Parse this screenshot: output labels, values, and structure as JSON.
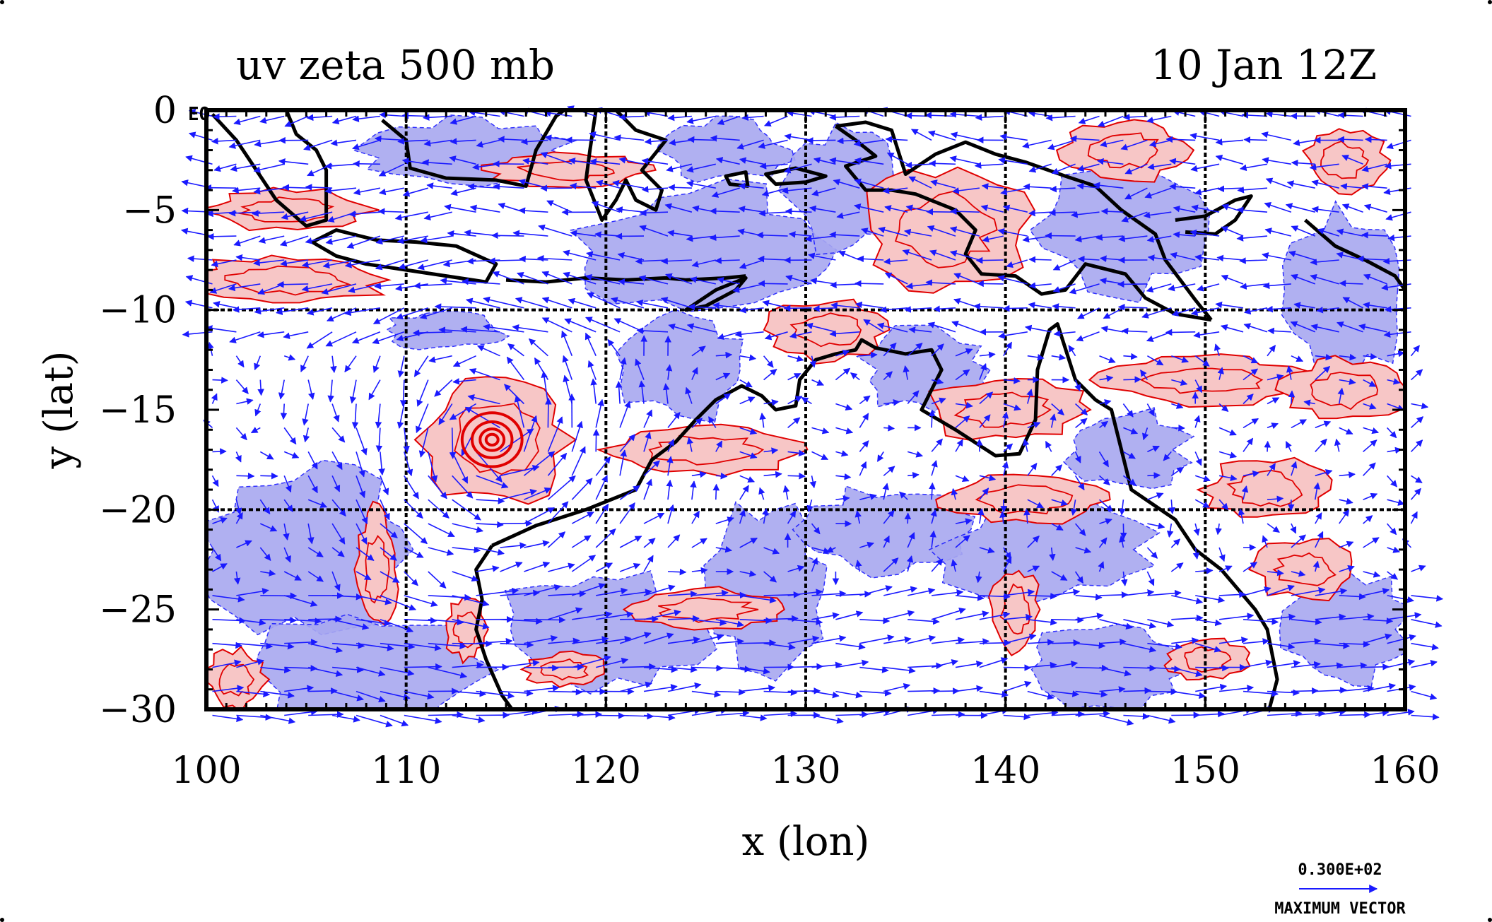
{
  "titles": {
    "left": "uv zeta 500 mb",
    "right": "10 Jan 12Z"
  },
  "axes": {
    "xlabel": "x (lon)",
    "ylabel": "y (lat)",
    "x_ticks": [
      "100",
      "110",
      "120",
      "130",
      "140",
      "150",
      "160"
    ],
    "y_ticks": [
      "0",
      "−5",
      "−10",
      "−15",
      "−20",
      "−25",
      "−30"
    ],
    "equator_label": "EQ",
    "xlim": [
      100,
      160
    ],
    "ylim": [
      -30,
      0
    ]
  },
  "legend": {
    "value": "0.300E+02",
    "caption": "MAXIMUM VECTOR"
  },
  "colors": {
    "vector": "#1a1aff",
    "positive_fill": "#f7c6c6",
    "positive_contour": "#e00000",
    "negative_fill": "#a8a8f0",
    "coastline": "#000000",
    "grid": "#000000"
  },
  "map_data": {
    "projection": "lon-lat",
    "gridlines_lon": [
      110,
      120,
      130,
      140,
      150
    ],
    "gridlines_lat": [
      -10,
      -20
    ],
    "cyclone_center": {
      "lon": 114.3,
      "lat": -16.5
    },
    "positive_vorticity_regions": [
      {
        "lon": 114.5,
        "lat": -16.5,
        "rlon": 3.5,
        "rlat": 3.2
      },
      {
        "lon": 104,
        "lat": -5,
        "rlon": 4,
        "rlat": 1
      },
      {
        "lon": 104,
        "lat": -8.5,
        "rlon": 5,
        "rlat": 1.2
      },
      {
        "lon": 118,
        "lat": -3,
        "rlon": 4,
        "rlat": 0.8
      },
      {
        "lon": 137,
        "lat": -6,
        "rlon": 4,
        "rlat": 3
      },
      {
        "lon": 146,
        "lat": -2,
        "rlon": 3,
        "rlat": 1.5
      },
      {
        "lon": 157,
        "lat": -2.5,
        "rlon": 2,
        "rlat": 1.5
      },
      {
        "lon": 125,
        "lat": -17,
        "rlon": 5,
        "rlat": 1.2
      },
      {
        "lon": 131,
        "lat": -11,
        "rlon": 3,
        "rlat": 1.5
      },
      {
        "lon": 140,
        "lat": -15,
        "rlon": 4,
        "rlat": 1.5
      },
      {
        "lon": 150,
        "lat": -13.5,
        "rlon": 5,
        "rlat": 1.2
      },
      {
        "lon": 153,
        "lat": -19,
        "rlon": 3,
        "rlat": 1.5
      },
      {
        "lon": 157,
        "lat": -14,
        "rlon": 3,
        "rlat": 1.5
      },
      {
        "lon": 141,
        "lat": -19.5,
        "rlon": 4,
        "rlat": 1.2
      },
      {
        "lon": 155,
        "lat": -23,
        "rlon": 2.5,
        "rlat": 1.5
      },
      {
        "lon": 150,
        "lat": -27.5,
        "rlon": 2,
        "rlat": 1
      },
      {
        "lon": 140.5,
        "lat": -25,
        "rlon": 1.2,
        "rlat": 2
      },
      {
        "lon": 108.5,
        "lat": -23,
        "rlon": 1,
        "rlat": 3
      },
      {
        "lon": 113,
        "lat": -26,
        "rlon": 1,
        "rlat": 1.5
      },
      {
        "lon": 101.5,
        "lat": -28.5,
        "rlon": 1.5,
        "rlat": 1.5
      },
      {
        "lon": 118,
        "lat": -28,
        "rlon": 2,
        "rlat": 0.8
      },
      {
        "lon": 125,
        "lat": -25,
        "rlon": 4,
        "rlat": 1
      }
    ],
    "negative_vorticity_regions": [
      {
        "lon": 105,
        "lat": -22,
        "rlon": 5,
        "rlat": 4
      },
      {
        "lon": 108,
        "lat": -28,
        "rlon": 6,
        "rlat": 2.5
      },
      {
        "lon": 120,
        "lat": -26,
        "rlon": 5,
        "rlat": 3
      },
      {
        "lon": 128,
        "lat": -24,
        "rlon": 3,
        "rlat": 4
      },
      {
        "lon": 134,
        "lat": -21,
        "rlon": 4,
        "rlat": 2
      },
      {
        "lon": 142,
        "lat": -22,
        "rlon": 5,
        "rlat": 2.5
      },
      {
        "lon": 145,
        "lat": -28,
        "rlon": 4,
        "rlat": 2
      },
      {
        "lon": 157,
        "lat": -26,
        "rlon": 3,
        "rlat": 3
      },
      {
        "lon": 157,
        "lat": -9,
        "rlon": 3,
        "rlat": 4
      },
      {
        "lon": 125,
        "lat": -7,
        "rlon": 6,
        "rlat": 3
      },
      {
        "lon": 113,
        "lat": -2,
        "rlon": 5,
        "rlat": 1.5
      },
      {
        "lon": 126,
        "lat": -2,
        "rlon": 3,
        "rlat": 1.5
      },
      {
        "lon": 132,
        "lat": -4,
        "rlon": 3,
        "rlat": 3
      },
      {
        "lon": 146,
        "lat": -6,
        "rlon": 4,
        "rlat": 3
      },
      {
        "lon": 124,
        "lat": -13,
        "rlon": 3,
        "rlat": 2.5
      },
      {
        "lon": 136,
        "lat": -13,
        "rlon": 3,
        "rlat": 2
      },
      {
        "lon": 146,
        "lat": -17,
        "rlon": 3,
        "rlat": 2
      },
      {
        "lon": 112,
        "lat": -11,
        "rlon": 3,
        "rlat": 1
      }
    ],
    "coastlines": [
      {
        "name": "Australia",
        "closed": false,
        "points": [
          [
            114.3,
            -21.8
          ],
          [
            113.5,
            -23
          ],
          [
            113.8,
            -24.5
          ],
          [
            113.5,
            -26
          ],
          [
            114,
            -27.5
          ],
          [
            114.8,
            -29.3
          ],
          [
            115.3,
            -30
          ]
        ]
      },
      {
        "name": "Australia north",
        "closed": false,
        "points": [
          [
            114.3,
            -21.8
          ],
          [
            116.5,
            -20.8
          ],
          [
            119,
            -20
          ],
          [
            121.5,
            -19
          ],
          [
            122.3,
            -17.5
          ],
          [
            123.5,
            -16.6
          ],
          [
            124.5,
            -15.5
          ],
          [
            125.5,
            -14.5
          ],
          [
            126.8,
            -13.8
          ],
          [
            127.8,
            -14.3
          ],
          [
            128.5,
            -15
          ],
          [
            129.5,
            -14.8
          ],
          [
            129.7,
            -13.5
          ],
          [
            130.5,
            -12.5
          ],
          [
            131.5,
            -12.2
          ],
          [
            132.5,
            -12
          ],
          [
            132.8,
            -11.5
          ],
          [
            133.5,
            -11.9
          ],
          [
            135,
            -12.2
          ],
          [
            136.3,
            -12
          ],
          [
            136.8,
            -13
          ],
          [
            135.8,
            -15
          ],
          [
            137.5,
            -16
          ],
          [
            139.5,
            -17.3
          ],
          [
            140.7,
            -17.2
          ],
          [
            141.5,
            -15.5
          ],
          [
            141.6,
            -13
          ],
          [
            142.2,
            -11
          ],
          [
            142.6,
            -10.7
          ],
          [
            143.5,
            -13.5
          ],
          [
            144.5,
            -14.5
          ],
          [
            145.3,
            -15
          ],
          [
            145.8,
            -17
          ],
          [
            146.3,
            -19
          ],
          [
            148.5,
            -20.5
          ],
          [
            149.5,
            -22
          ],
          [
            150.8,
            -23
          ],
          [
            152.5,
            -25
          ],
          [
            153.1,
            -26
          ],
          [
            153.6,
            -28.5
          ],
          [
            153.2,
            -30
          ]
        ]
      },
      {
        "name": "Sumatra",
        "closed": false,
        "points": [
          [
            100.3,
            -0.2
          ],
          [
            101.5,
            -1.5
          ],
          [
            102.5,
            -3
          ],
          [
            103.5,
            -4.5
          ],
          [
            105,
            -5.8
          ],
          [
            106,
            -5.5
          ],
          [
            106,
            -3
          ],
          [
            105.5,
            -2
          ],
          [
            104.5,
            -1.2
          ],
          [
            104,
            0
          ]
        ]
      },
      {
        "name": "Java",
        "closed": true,
        "points": [
          [
            105.3,
            -6.6
          ],
          [
            106.5,
            -6
          ],
          [
            108.5,
            -6.5
          ],
          [
            110.5,
            -6.6
          ],
          [
            112.5,
            -6.8
          ],
          [
            114.5,
            -7.7
          ],
          [
            114,
            -8.6
          ],
          [
            112,
            -8.3
          ],
          [
            110,
            -8
          ],
          [
            108,
            -7.7
          ],
          [
            106.5,
            -7.3
          ]
        ]
      },
      {
        "name": "Lesser Sunda",
        "closed": false,
        "points": [
          [
            115,
            -8.5
          ],
          [
            117,
            -8.6
          ],
          [
            119,
            -8.4
          ],
          [
            121,
            -8.5
          ],
          [
            123,
            -8.4
          ],
          [
            124,
            -8.5
          ],
          [
            126,
            -8.4
          ],
          [
            127,
            -8.3
          ]
        ]
      },
      {
        "name": "Timor",
        "closed": true,
        "points": [
          [
            124,
            -10
          ],
          [
            125.5,
            -9
          ],
          [
            127,
            -8.4
          ],
          [
            126.5,
            -9
          ],
          [
            125,
            -9.8
          ]
        ]
      },
      {
        "name": "Borneo",
        "closed": false,
        "points": [
          [
            108.8,
            -0.5
          ],
          [
            110,
            -1.5
          ],
          [
            110.2,
            -2.9
          ],
          [
            112,
            -3.4
          ],
          [
            114.5,
            -3.5
          ],
          [
            116,
            -3.8
          ],
          [
            116.5,
            -2
          ],
          [
            117.5,
            -0.3
          ],
          [
            117.9,
            0
          ]
        ]
      },
      {
        "name": "Sulawesi",
        "closed": false,
        "points": [
          [
            119.5,
            0
          ],
          [
            119.2,
            -2
          ],
          [
            119,
            -3.5
          ],
          [
            119.8,
            -5.5
          ],
          [
            120.5,
            -4.5
          ],
          [
            121,
            -3.5
          ],
          [
            121.5,
            -4.5
          ],
          [
            122.5,
            -5
          ],
          [
            122.8,
            -4
          ],
          [
            121.8,
            -3
          ],
          [
            123,
            -1.5
          ],
          [
            121.5,
            -1
          ],
          [
            120.5,
            0
          ]
        ]
      },
      {
        "name": "Seram",
        "closed": true,
        "points": [
          [
            128,
            -3.2
          ],
          [
            129.5,
            -2.9
          ],
          [
            131,
            -3.3
          ],
          [
            130,
            -3.6
          ],
          [
            128.5,
            -3.7
          ]
        ]
      },
      {
        "name": "Buru",
        "closed": true,
        "points": [
          [
            126,
            -3.3
          ],
          [
            127,
            -3.1
          ],
          [
            127.1,
            -3.8
          ],
          [
            126.2,
            -3.7
          ]
        ]
      },
      {
        "name": "New Guinea north",
        "closed": false,
        "points": [
          [
            131.5,
            -0.8
          ],
          [
            133,
            -0.6
          ],
          [
            134.3,
            -1
          ],
          [
            135,
            -3.2
          ],
          [
            136.5,
            -2.2
          ],
          [
            138,
            -1.6
          ],
          [
            139.5,
            -2.2
          ],
          [
            141,
            -2.6
          ],
          [
            143,
            -3.3
          ],
          [
            144.5,
            -3.8
          ],
          [
            145.8,
            -5
          ],
          [
            147.5,
            -6.2
          ],
          [
            148,
            -7.5
          ],
          [
            149.5,
            -9.5
          ],
          [
            150.3,
            -10.5
          ]
        ]
      },
      {
        "name": "New Guinea south",
        "closed": false,
        "points": [
          [
            150.3,
            -10.5
          ],
          [
            148.5,
            -10.2
          ],
          [
            147,
            -9.4
          ],
          [
            146,
            -8.2
          ],
          [
            144,
            -7.7
          ],
          [
            143,
            -9
          ],
          [
            141.8,
            -9.2
          ],
          [
            140.5,
            -8.3
          ],
          [
            138.8,
            -8.2
          ],
          [
            138,
            -7.2
          ],
          [
            138.5,
            -6
          ],
          [
            137.5,
            -5
          ],
          [
            135.5,
            -4.2
          ],
          [
            134.3,
            -4
          ],
          [
            133,
            -4
          ],
          [
            132,
            -2.8
          ],
          [
            133.5,
            -2.3
          ],
          [
            132.5,
            -1.5
          ],
          [
            131.5,
            -0.8
          ]
        ]
      },
      {
        "name": "New Britain",
        "closed": false,
        "points": [
          [
            148.5,
            -5.5
          ],
          [
            150,
            -5.3
          ],
          [
            151.5,
            -4.5
          ],
          [
            152.3,
            -4.3
          ],
          [
            151.5,
            -5.5
          ],
          [
            150.5,
            -6.2
          ],
          [
            149,
            -6.1
          ]
        ]
      },
      {
        "name": "Solomons",
        "closed": false,
        "points": [
          [
            155,
            -5.5
          ],
          [
            156.5,
            -6.8
          ],
          [
            158,
            -7.5
          ],
          [
            159.5,
            -8.3
          ],
          [
            160,
            -9
          ]
        ]
      }
    ]
  }
}
